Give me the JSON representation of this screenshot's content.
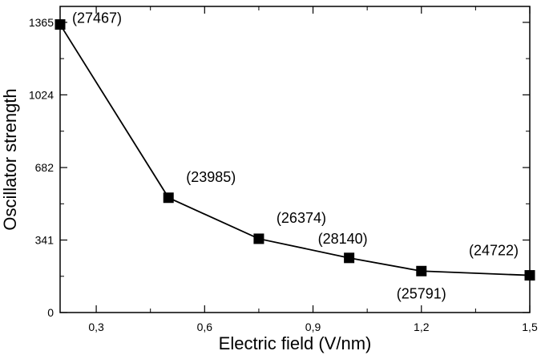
{
  "chart_data": {
    "type": "line",
    "title": "",
    "xlabel": "Electric field (V/nm)",
    "ylabel": "Oscillator strength",
    "xlim": [
      0.2,
      1.5
    ],
    "ylim": [
      0,
      1440
    ],
    "x_ticks": [
      0.3,
      0.6,
      0.9,
      1.2,
      1.5
    ],
    "x_tick_labels": [
      "0,3",
      "0,6",
      "0,9",
      "1,2",
      "1,5"
    ],
    "y_ticks": [
      0,
      341,
      682,
      1024,
      1365
    ],
    "y_tick_labels": [
      "0",
      "341",
      "682",
      "1024",
      "1365"
    ],
    "grid": false,
    "legend": "none",
    "series": [
      {
        "x": [
          0.2,
          0.5,
          0.75,
          1.0,
          1.2,
          1.5
        ],
        "y": [
          1355,
          540,
          347,
          257,
          195,
          175
        ],
        "labels": [
          "(27467)",
          "(23985)",
          "(26374)",
          "(28140)",
          "(25791)",
          "(24722)"
        ],
        "label_positions": [
          "above-right",
          "above-right",
          "above-right",
          "above",
          "below",
          "above-left"
        ],
        "marker": "square",
        "color": "#000000"
      }
    ]
  }
}
